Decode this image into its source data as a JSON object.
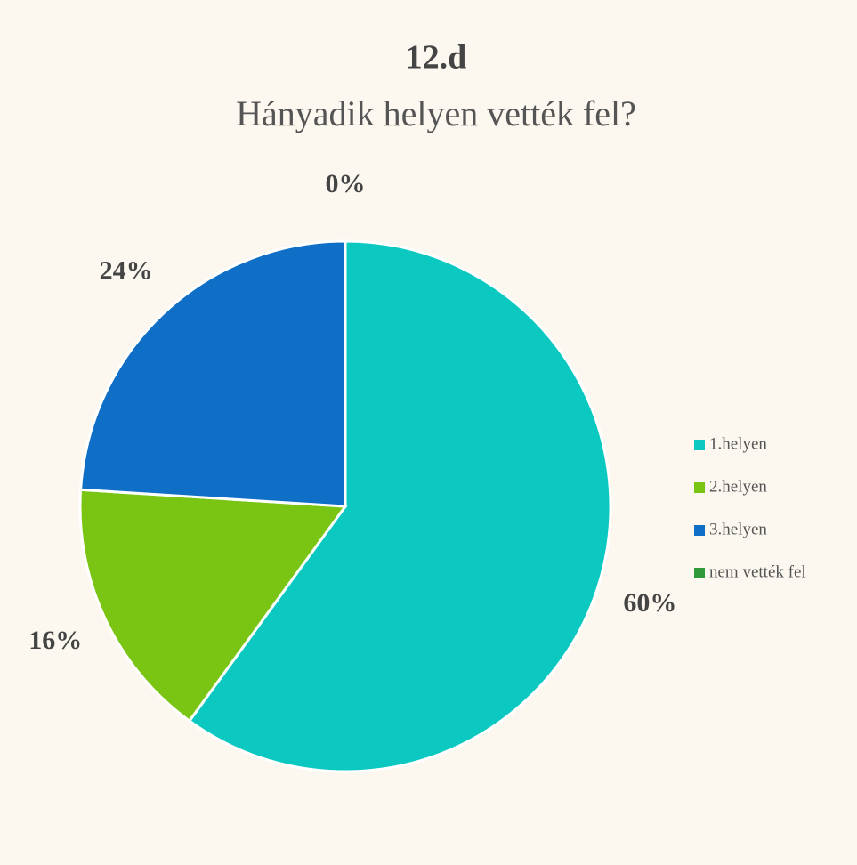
{
  "chart_data": {
    "type": "pie",
    "title": "12.d",
    "subtitle": "Hányadik helyen vették fel?",
    "categories": [
      "1.helyen",
      "2.helyen",
      "3.helyen",
      "nem vették fel"
    ],
    "values": [
      60,
      16,
      24,
      0
    ],
    "value_labels": [
      "60%",
      "16%",
      "24%",
      "0%"
    ],
    "colors": [
      "#0bc9c0",
      "#7ac414",
      "#0f6fc6",
      "#2e9a3a"
    ],
    "legend": "right"
  }
}
